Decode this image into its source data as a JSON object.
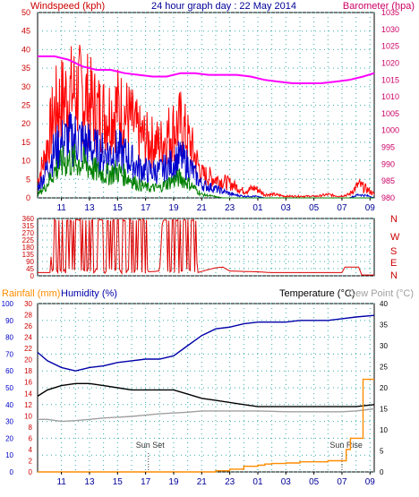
{
  "header": {
    "left": "Windspeed (kph)",
    "center": "24 hour graph day : 22 May 2014",
    "right": "Barometer (hpa)"
  },
  "colors": {
    "wind_red": "#ff0000",
    "wind_blue": "#0000cc",
    "wind_green": "#008000",
    "barometer": "#ff00ff",
    "direction": "#dd0000",
    "humidity": "#0000aa",
    "temperature": "#000000",
    "dewpoint": "#a0a0a0",
    "rainfall": "#ff8c00",
    "left_axis": "#cc0000",
    "right_axis_baro": "#cc0066",
    "bottom_left_axis": "#0000cc",
    "bottom_red_axis": "#cc0000"
  },
  "chart_data": [
    {
      "type": "line",
      "title": "24 hour graph day : 22 May 2014",
      "ylabel": "Windspeed (kph)",
      "y2label": "Barometer (hpa)",
      "x_ticks": [
        "11",
        "13",
        "15",
        "17",
        "19",
        "21",
        "23",
        "01",
        "03",
        "05",
        "07",
        "09"
      ],
      "ylim": [
        0,
        50
      ],
      "y_ticks": [
        0,
        5,
        10,
        15,
        20,
        25,
        30,
        35,
        40,
        45,
        50
      ],
      "y2lim": [
        980,
        1035
      ],
      "y2_ticks": [
        980,
        985,
        990,
        995,
        1000,
        1005,
        1010,
        1015,
        1020,
        1025,
        1030,
        1035
      ],
      "series": [
        {
          "name": "Barometer (hpa)",
          "axis": "right",
          "color": "#ff00ff",
          "x": [
            9.3,
            10.5,
            11.5,
            12.5,
            13.5,
            14.5,
            15.5,
            16.5,
            17.5,
            18.5,
            19.5,
            20.5,
            21.5,
            22.5,
            23.5,
            24.5,
            25.5,
            26.5,
            27.5,
            28.5,
            29.5,
            30.5,
            31.5,
            32.5,
            33.3
          ],
          "y": [
            1022,
            1022,
            1021,
            1019,
            1018,
            1018,
            1017,
            1016.5,
            1016,
            1016,
            1017,
            1017,
            1016.5,
            1016.5,
            1016.5,
            1016,
            1015,
            1014.5,
            1014,
            1014,
            1014,
            1014.5,
            1015,
            1016,
            1017
          ]
        },
        {
          "name": "gust",
          "color": "#ff0000",
          "x": [
            9.3,
            9.8,
            10.5,
            11.2,
            12,
            12.8,
            13.5,
            14.2,
            15,
            15.8,
            16.5,
            17.2,
            18,
            18.8,
            19.5,
            20.2,
            21,
            21.8,
            22.5,
            23.2,
            24,
            24.8,
            25.5,
            26.2,
            27,
            27.8,
            28.5,
            29.2,
            30,
            30.8,
            31.5,
            32.2,
            33,
            33.3
          ],
          "y": [
            5,
            12,
            26,
            30,
            32,
            30,
            26,
            25,
            27,
            24,
            19,
            17,
            16,
            20,
            22,
            16,
            7,
            6,
            5,
            4,
            2,
            3,
            1,
            1,
            0.5,
            0.5,
            0.5,
            0.5,
            1,
            0.5,
            1,
            4,
            2,
            1
          ]
        },
        {
          "name": "average",
          "color": "#0000cc",
          "x": [
            9.3,
            9.8,
            10.5,
            11.2,
            12,
            12.8,
            13.5,
            14.2,
            15,
            15.8,
            16.5,
            17.2,
            18,
            18.8,
            19.5,
            20.2,
            21,
            21.8,
            22.5,
            23.2,
            24,
            24.8,
            25.5,
            26.2,
            27,
            27.8,
            28.5,
            29.2,
            30,
            30.8,
            31.5,
            32.2,
            33,
            33.3
          ],
          "y": [
            3,
            7,
            14,
            17,
            18,
            16,
            14,
            13,
            14,
            12,
            9,
            8,
            8,
            10,
            12,
            9,
            4,
            3,
            2,
            1,
            0.5,
            0.5,
            0,
            0,
            0,
            0,
            0,
            0,
            0,
            0,
            0,
            1,
            0.5,
            0
          ]
        },
        {
          "name": "minimum",
          "color": "#008000",
          "x": [
            9.3,
            9.8,
            10.5,
            11.2,
            12,
            12.8,
            13.5,
            14.2,
            15,
            15.8,
            16.5,
            17.2,
            18,
            18.8,
            19.5,
            20.2,
            21,
            21.8,
            22.5,
            23.2,
            24,
            24.8,
            25.5,
            26.2,
            27,
            27.8,
            28.5,
            29.2,
            30,
            30.8,
            31.5,
            32.2,
            33,
            33.3
          ],
          "y": [
            1,
            3,
            8,
            11,
            11,
            10,
            8,
            7,
            8,
            6,
            4,
            3,
            3,
            5,
            6,
            4,
            1,
            0.5,
            0,
            0,
            0,
            0,
            0,
            0,
            0,
            0,
            0,
            0,
            0,
            0,
            0,
            0,
            0,
            0
          ]
        }
      ]
    },
    {
      "type": "line",
      "ylabel": "Wind direction",
      "ylim": [
        0,
        360
      ],
      "y_ticks": [
        0,
        45,
        90,
        135,
        180,
        225,
        270,
        315,
        360
      ],
      "right_labels": [
        "N",
        "W",
        "S",
        "E",
        "N"
      ],
      "series": [
        {
          "name": "direction",
          "color": "#dd0000",
          "x": [
            9.3,
            10.2,
            10.4,
            11.0,
            11.2,
            12.0,
            12.2,
            12.8,
            13.0,
            14.0,
            14.2,
            15.0,
            15.2,
            16.0,
            16.2,
            17.0,
            17.2,
            18.0,
            18.2,
            18.8,
            19.0,
            20.5,
            20.7,
            21.5,
            22.0,
            22.5,
            23.0,
            25.0,
            26.0,
            28.0,
            29.0,
            30.0,
            31.0,
            31.2,
            32.2,
            32.4,
            33.3
          ],
          "y": [
            20,
            20,
            350,
            30,
            340,
            40,
            350,
            30,
            345,
            30,
            350,
            340,
            30,
            40,
            350,
            30,
            25,
            30,
            350,
            355,
            350,
            340,
            20,
            40,
            50,
            55,
            30,
            25,
            20,
            20,
            20,
            20,
            20,
            55,
            55,
            5,
            5
          ]
        }
      ]
    },
    {
      "type": "line",
      "title": "Temperature (°C)",
      "ylabel": "Rainfall (mm)",
      "y2label": "Dew Point (°C)",
      "third_label": "Humidity (%)",
      "x_ticks": [
        "11",
        "13",
        "15",
        "17",
        "19",
        "21",
        "23",
        "01",
        "03",
        "05",
        "07",
        "09"
      ],
      "humidity_ticks": [
        0,
        10,
        20,
        30,
        40,
        50,
        60,
        70,
        80,
        90,
        100
      ],
      "rain_ticks": [
        0,
        2,
        4,
        6,
        8,
        10,
        12,
        14,
        16,
        18,
        20,
        22,
        24,
        26,
        28,
        30
      ],
      "temp_ticks": [
        0,
        5,
        10,
        15,
        20,
        25,
        30,
        35,
        40
      ],
      "annotations": [
        "Sun Set",
        "Sun Rise"
      ],
      "series": [
        {
          "name": "Humidity (%)",
          "axis": "humidity",
          "color": "#0000aa",
          "x": [
            9.3,
            10,
            11,
            12,
            13,
            14,
            15,
            16,
            17,
            18,
            19,
            20,
            21,
            22,
            23,
            24,
            25,
            26,
            27,
            28,
            29,
            30,
            31,
            32,
            33.3
          ],
          "y": [
            71,
            66,
            62,
            60,
            62,
            63,
            65,
            66,
            67,
            67,
            69,
            75,
            81,
            85,
            86,
            88,
            89,
            89,
            89,
            90,
            90,
            90,
            91,
            92,
            93
          ]
        },
        {
          "name": "Temperature (°C)",
          "axis": "temp",
          "color": "#000000",
          "x": [
            9.3,
            10,
            11,
            12,
            13,
            14,
            15,
            16,
            17,
            18,
            19,
            20,
            21,
            22,
            23,
            24,
            25,
            26,
            27,
            28,
            29,
            30,
            31,
            32,
            33.3
          ],
          "y": [
            18,
            19.5,
            20.5,
            21,
            21,
            20.5,
            20,
            19.5,
            19.5,
            19.5,
            19.5,
            18.5,
            17.5,
            17,
            16.5,
            16,
            15.5,
            15.5,
            15.5,
            15.5,
            15.5,
            15.5,
            15.5,
            15.5,
            16
          ]
        },
        {
          "name": "Dew Point (°C)",
          "axis": "temp",
          "color": "#a0a0a0",
          "x": [
            9.3,
            10,
            11,
            12,
            13,
            14,
            15,
            16,
            17,
            18,
            19,
            20,
            21,
            22,
            23,
            24,
            25,
            26,
            27,
            28,
            29,
            30,
            31,
            32,
            33.3
          ],
          "y": [
            12.5,
            12.5,
            12,
            12.2,
            12.5,
            12.8,
            13,
            13.2,
            13.5,
            13.8,
            14,
            14.2,
            14.5,
            14.5,
            14.5,
            14.5,
            14.5,
            14.4,
            14.3,
            14.3,
            14.3,
            14.3,
            14.3,
            14.5,
            15
          ]
        },
        {
          "name": "Rainfall (mm)",
          "axis": "rain",
          "color": "#ff8c00",
          "x": [
            9.3,
            21,
            22,
            23,
            24,
            25,
            25.5,
            26,
            27,
            28,
            29,
            30,
            31,
            31.3,
            31.6,
            32,
            32.5,
            33.3
          ],
          "y": [
            0,
            0,
            0.2,
            0.5,
            1,
            1.2,
            1.4,
            1.5,
            1.6,
            1.8,
            1.8,
            2,
            2,
            4,
            6,
            6,
            16.5,
            16.5
          ]
        }
      ]
    }
  ],
  "labels": {
    "dir_right": [
      "N",
      "W",
      "S",
      "E",
      "N"
    ],
    "rainfall": "Rainfall (mm)",
    "humidity": "Humidity (%)",
    "temperature": "Temperature (°C)",
    "dewpoint": "Dew Point (°C)",
    "sunset": "Sun Set",
    "sunrise": "Sun Rise"
  }
}
